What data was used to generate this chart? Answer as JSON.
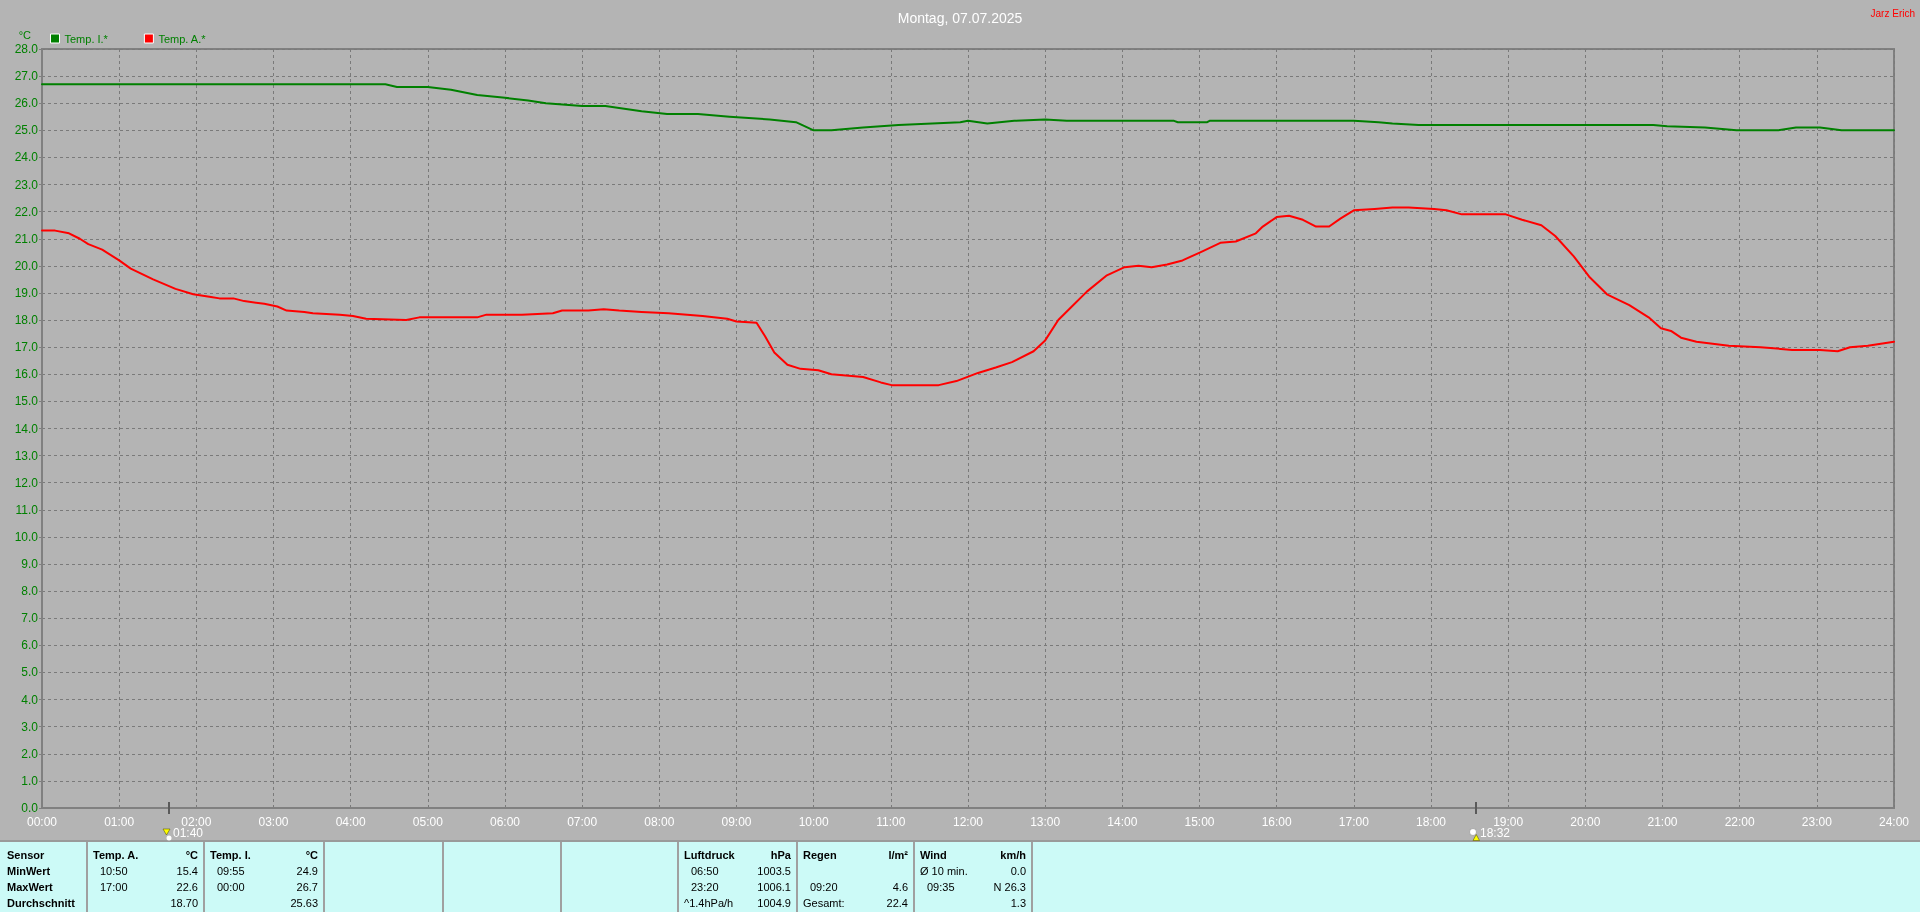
{
  "chart_data": {
    "type": "line",
    "title": "Montag, 07.07.2025",
    "ylabel": "°C",
    "series": [
      {
        "name": "Temp. I.*",
        "color": "#008000",
        "x": [
          0,
          4.45,
          4.6,
          5.0,
          5.3,
          5.64,
          6.0,
          6.3,
          6.53,
          7.0,
          7.3,
          7.77,
          8.1,
          8.5,
          8.91,
          9.43,
          9.77,
          10.0,
          10.23,
          10.64,
          11.1,
          11.9,
          12.0,
          12.25,
          12.6,
          13.0,
          13.28,
          14.67,
          14.72,
          15.1,
          15.13,
          17.0,
          17.32,
          17.5,
          17.84,
          20.88,
          21.06,
          21.55,
          21.96,
          22.5,
          22.73,
          23.04,
          23.32,
          24.0
        ],
        "values": [
          26.7,
          26.7,
          26.6,
          26.6,
          26.5,
          26.3,
          26.2,
          26.1,
          26.0,
          25.9,
          25.9,
          25.7,
          25.6,
          25.6,
          25.5,
          25.4,
          25.3,
          25.0,
          25.0,
          25.1,
          25.2,
          25.3,
          25.35,
          25.25,
          25.35,
          25.4,
          25.35,
          25.35,
          25.3,
          25.3,
          25.35,
          25.35,
          25.3,
          25.25,
          25.2,
          25.2,
          25.15,
          25.1,
          25.0,
          25.0,
          25.1,
          25.1,
          25.0,
          25.0
        ]
      },
      {
        "name": "Temp. A.*",
        "color": "#ff0000",
        "x": [
          0,
          0.17,
          0.35,
          0.49,
          0.6,
          0.78,
          1.0,
          1.15,
          1.44,
          1.73,
          1.96,
          2.19,
          2.3,
          2.48,
          2.62,
          2.88,
          3.05,
          3.17,
          3.4,
          3.51,
          3.86,
          4.03,
          4.2,
          4.72,
          4.89,
          5.12,
          5.64,
          5.76,
          6.22,
          6.62,
          6.74,
          7.08,
          7.28,
          7.48,
          7.77,
          8.12,
          8.56,
          8.88,
          9.0,
          9.26,
          9.37,
          9.49,
          9.66,
          9.83,
          10.06,
          10.23,
          10.64,
          10.87,
          11.01,
          11.33,
          11.62,
          11.85,
          12.13,
          12.36,
          12.57,
          12.85,
          13.0,
          13.17,
          13.31,
          13.54,
          13.8,
          14.03,
          14.21,
          14.38,
          14.58,
          14.78,
          15.01,
          15.27,
          15.47,
          15.73,
          15.82,
          16.0,
          16.16,
          16.34,
          16.51,
          16.68,
          16.83,
          17.0,
          17.27,
          17.5,
          17.71,
          18.04,
          18.2,
          18.4,
          18.81,
          18.97,
          19.18,
          19.43,
          19.61,
          19.85,
          20.05,
          20.28,
          20.57,
          20.82,
          20.98,
          21.11,
          21.24,
          21.44,
          21.86,
          22.27,
          22.68,
          23.04,
          23.27,
          23.43,
          23.66,
          24.0
        ],
        "values": [
          21.3,
          21.3,
          21.2,
          21.0,
          20.8,
          20.6,
          20.2,
          19.9,
          19.5,
          19.15,
          18.95,
          18.85,
          18.8,
          18.8,
          18.7,
          18.6,
          18.5,
          18.35,
          18.3,
          18.25,
          18.2,
          18.15,
          18.05,
          18.0,
          18.1,
          18.1,
          18.1,
          18.2,
          18.2,
          18.25,
          18.35,
          18.35,
          18.4,
          18.35,
          18.3,
          18.25,
          18.15,
          18.05,
          17.95,
          17.9,
          17.4,
          16.8,
          16.35,
          16.2,
          16.15,
          16.0,
          15.9,
          15.7,
          15.6,
          15.6,
          15.6,
          15.75,
          16.05,
          16.25,
          16.45,
          16.85,
          17.25,
          18.0,
          18.4,
          19.05,
          19.65,
          19.95,
          20.0,
          19.95,
          20.05,
          20.2,
          20.5,
          20.85,
          20.9,
          21.2,
          21.45,
          21.8,
          21.85,
          21.7,
          21.45,
          21.45,
          21.75,
          22.05,
          22.1,
          22.15,
          22.15,
          22.1,
          22.05,
          21.9,
          21.9,
          21.9,
          21.7,
          21.5,
          21.1,
          20.35,
          19.6,
          18.95,
          18.55,
          18.1,
          17.7,
          17.6,
          17.35,
          17.2,
          17.05,
          17.0,
          16.9,
          16.9,
          16.85,
          17.0,
          17.05,
          17.2
        ]
      }
    ],
    "xlim": [
      0,
      24
    ],
    "xticks": [
      {
        "value": 0,
        "label": "00:00"
      },
      {
        "value": 1,
        "label": "01:00"
      },
      {
        "value": 2,
        "label": "02:00"
      },
      {
        "value": 3,
        "label": "03:00"
      },
      {
        "value": 4,
        "label": "04:00"
      },
      {
        "value": 5,
        "label": "05:00"
      },
      {
        "value": 6,
        "label": "06:00"
      },
      {
        "value": 7,
        "label": "07:00"
      },
      {
        "value": 8,
        "label": "08:00"
      },
      {
        "value": 9,
        "label": "09:00"
      },
      {
        "value": 10,
        "label": "10:00"
      },
      {
        "value": 11,
        "label": "11:00"
      },
      {
        "value": 12,
        "label": "12:00"
      },
      {
        "value": 13,
        "label": "13:00"
      },
      {
        "value": 14,
        "label": "14:00"
      },
      {
        "value": 15,
        "label": "15:00"
      },
      {
        "value": 16,
        "label": "16:00"
      },
      {
        "value": 17,
        "label": "17:00"
      },
      {
        "value": 18,
        "label": "18:00"
      },
      {
        "value": 19,
        "label": "19:00"
      },
      {
        "value": 20,
        "label": "20:00"
      },
      {
        "value": 21,
        "label": "21:00"
      },
      {
        "value": 22,
        "label": "22:00"
      },
      {
        "value": 23,
        "label": "23:00"
      },
      {
        "value": 24,
        "label": "24:00"
      }
    ],
    "ylim": [
      0,
      28
    ],
    "yticks": [
      {
        "value": 0,
        "label": "0.0"
      },
      {
        "value": 1,
        "label": "1.0"
      },
      {
        "value": 2,
        "label": "2.0"
      },
      {
        "value": 3,
        "label": "3.0"
      },
      {
        "value": 4,
        "label": "4.0"
      },
      {
        "value": 5,
        "label": "5.0"
      },
      {
        "value": 6,
        "label": "6.0"
      },
      {
        "value": 7,
        "label": "7.0"
      },
      {
        "value": 8,
        "label": "8.0"
      },
      {
        "value": 9,
        "label": "9.0"
      },
      {
        "value": 10,
        "label": "10.0"
      },
      {
        "value": 11,
        "label": "11.0"
      },
      {
        "value": 12,
        "label": "12.0"
      },
      {
        "value": 13,
        "label": "13.0"
      },
      {
        "value": 14,
        "label": "14.0"
      },
      {
        "value": 15,
        "label": "15.0"
      },
      {
        "value": 16,
        "label": "16.0"
      },
      {
        "value": 17,
        "label": "17.0"
      },
      {
        "value": 18,
        "label": "18.0"
      },
      {
        "value": 19,
        "label": "19.0"
      },
      {
        "value": 20,
        "label": "20.0"
      },
      {
        "value": 21,
        "label": "21.0"
      },
      {
        "value": 22,
        "label": "22.0"
      },
      {
        "value": 23,
        "label": "23.0"
      },
      {
        "value": 24,
        "label": "24.0"
      },
      {
        "value": 25,
        "label": "25.0"
      },
      {
        "value": 26,
        "label": "26.0"
      },
      {
        "value": 27,
        "label": "27.0"
      },
      {
        "value": 28,
        "label": "28.0"
      }
    ],
    "grid": true,
    "legend": "top left",
    "marker": "none",
    "annotations": [
      "Jarz Erich",
      "01:40",
      "18:32",
      "Sensor",
      "Temp. A.",
      "°C",
      "Temp. I.",
      "°C",
      "Luftdruck",
      "hPa",
      "Regen",
      "l/m²",
      "Wind",
      "km/h",
      "MinWert",
      "10:50",
      "15.4",
      "09:55",
      "24.9",
      "06:50",
      "1003.5",
      "Ø 10 min.",
      "0.0",
      "MaxWert",
      "17:00",
      "22.6",
      "00:00",
      "26.7",
      "23:20",
      "1006.1",
      "09:20",
      "4.6",
      "09:35",
      "N 26.3",
      "Durchschnitt",
      "18.70",
      "25.63",
      "^1.4hPa/h",
      "1004.9",
      "Gesamt:",
      "22.4",
      "1.3"
    ]
  }
}
